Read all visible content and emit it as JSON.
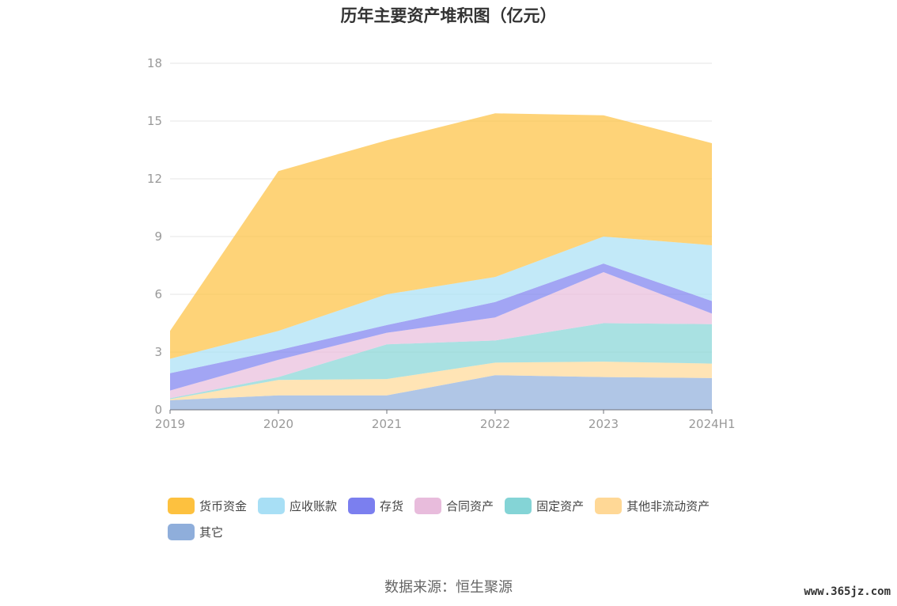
{
  "chart_data": {
    "type": "area",
    "stacked": true,
    "title": "历年主要资产堆积图（亿元）",
    "categories": [
      "2019",
      "2020",
      "2021",
      "2022",
      "2023",
      "2024H1"
    ],
    "ylim": [
      0,
      18
    ],
    "yticks": [
      "0",
      "3",
      "6",
      "9",
      "12",
      "15",
      "18"
    ],
    "grid": true,
    "legend_position": "bottom",
    "series": [
      {
        "name": "其它",
        "color": "#8faedb",
        "values": [
          0.5,
          0.75,
          0.75,
          1.8,
          1.7,
          1.65
        ]
      },
      {
        "name": "其他非流动资产",
        "color": "#ffd896",
        "values": [
          0.05,
          0.8,
          0.85,
          0.65,
          0.8,
          0.75
        ]
      },
      {
        "name": "固定资产",
        "color": "#84d4d6",
        "values": [
          0.05,
          0.15,
          1.8,
          1.15,
          2.0,
          2.05
        ]
      },
      {
        "name": "合同资产",
        "color": "#e8bcdc",
        "values": [
          0.4,
          0.9,
          0.6,
          1.2,
          2.65,
          0.55
        ]
      },
      {
        "name": "存货",
        "color": "#7b7fef",
        "values": [
          0.9,
          0.5,
          0.4,
          0.8,
          0.45,
          0.65
        ]
      },
      {
        "name": "应收账款",
        "color": "#a8dff5",
        "values": [
          0.75,
          1.0,
          1.6,
          1.3,
          1.4,
          2.9
        ]
      },
      {
        "name": "货币资金",
        "color": "#fdc13f",
        "values": [
          1.45,
          8.3,
          8.0,
          8.5,
          6.3,
          5.3
        ]
      }
    ]
  },
  "source_label": "数据来源：恒生聚源",
  "watermark": "www.365jz.com"
}
